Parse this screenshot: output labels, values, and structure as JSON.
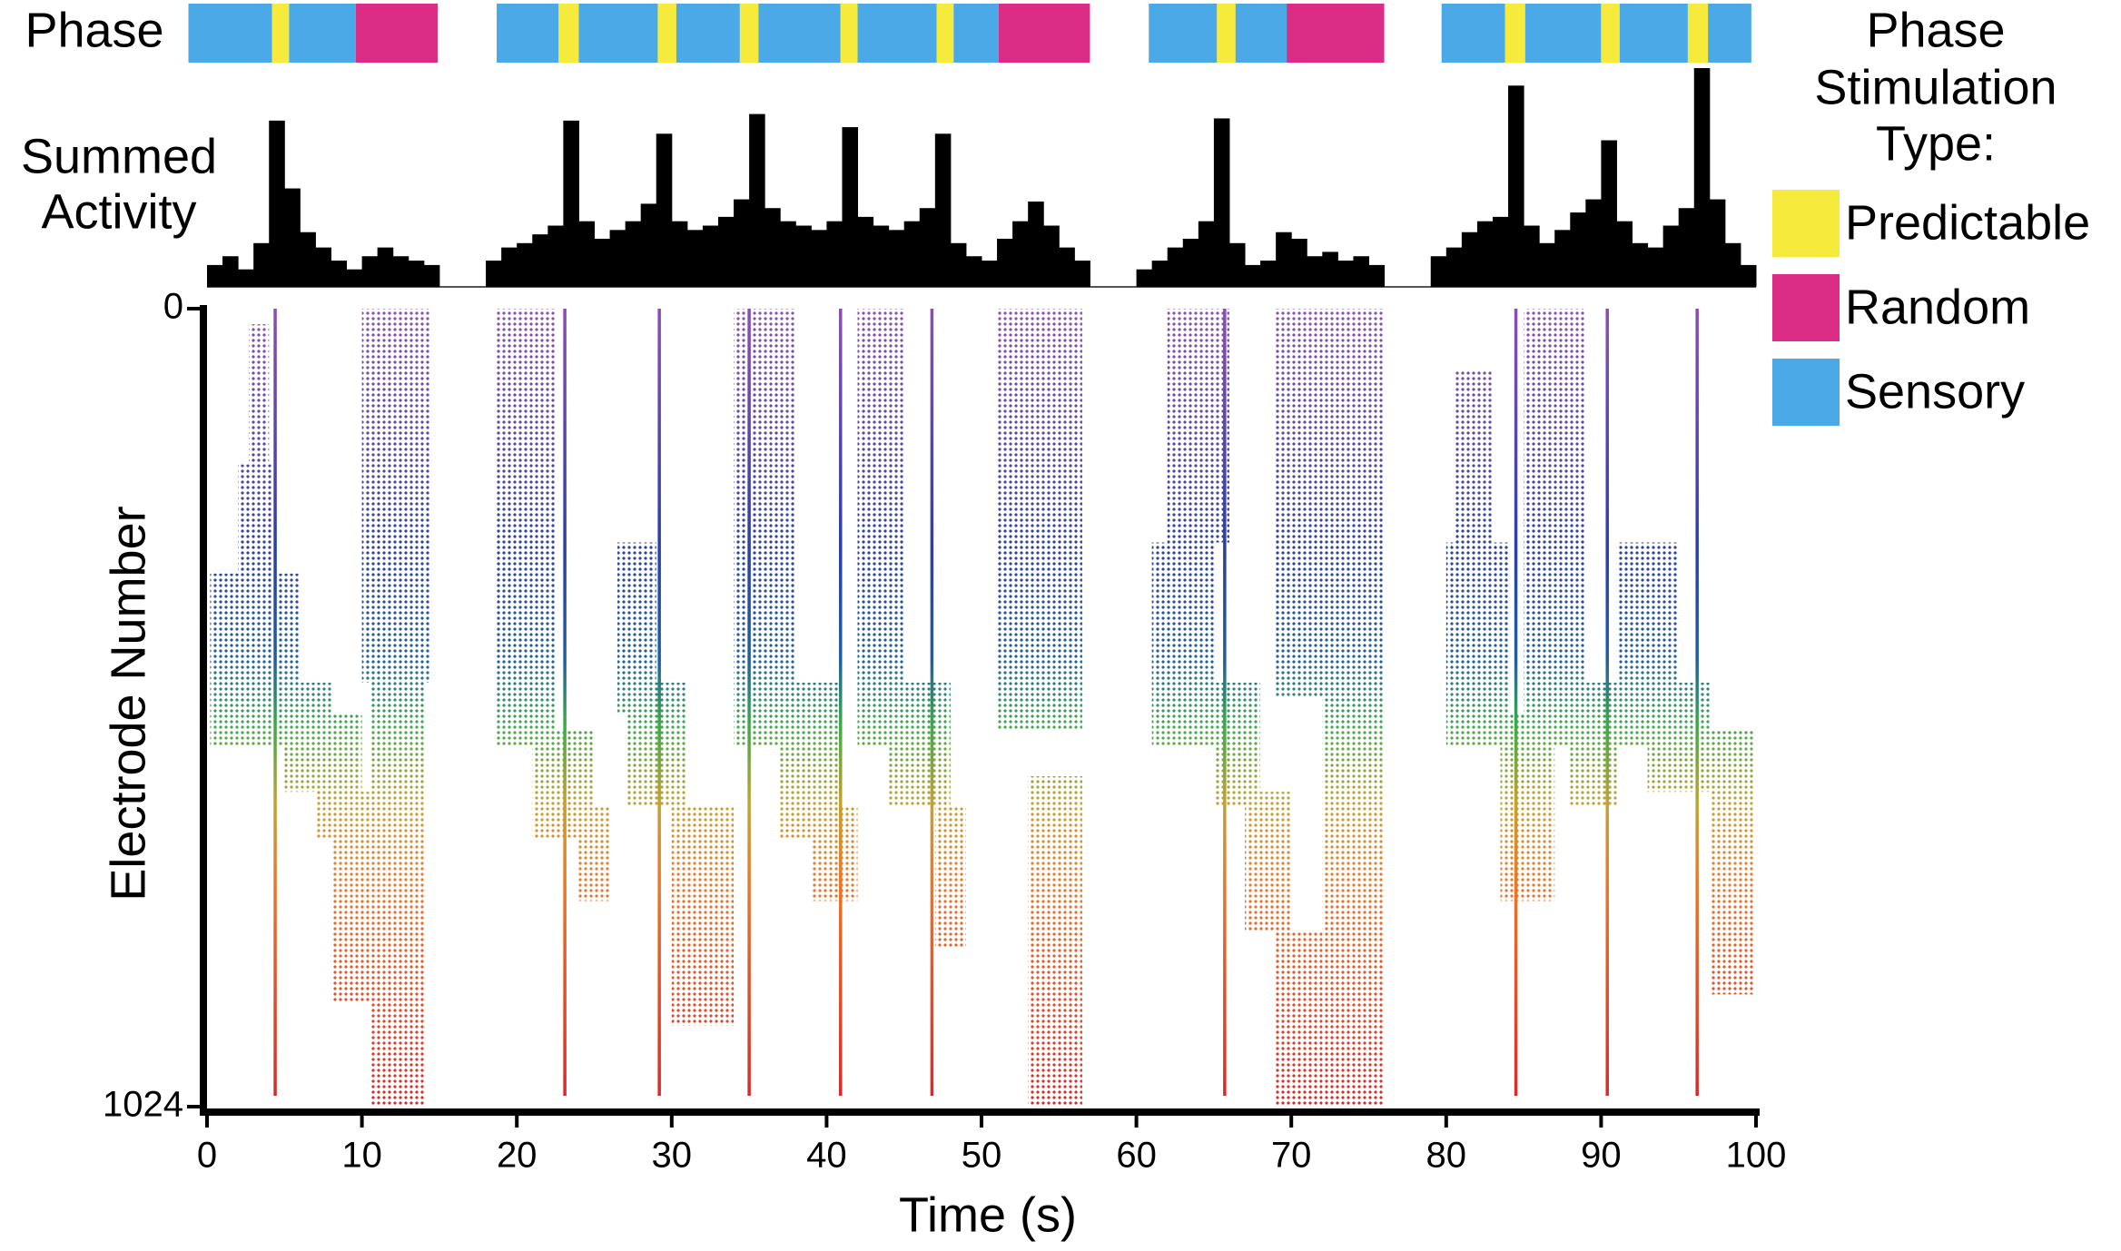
{
  "chart_data": {
    "type": "raster",
    "phase_label": "Phase",
    "activity_label": [
      "Summed",
      "Activity"
    ],
    "ylabel": "Electrode Number",
    "xlabel": "Time (s)",
    "xlim": [
      0,
      100
    ],
    "xticks": [
      0,
      10,
      20,
      30,
      40,
      50,
      60,
      70,
      80,
      90,
      100
    ],
    "ylim": [
      0,
      1024
    ],
    "yticks": [
      0,
      1024
    ],
    "y_inverted": true,
    "legend_title": [
      "Phase",
      "Stimulation",
      "Type:"
    ],
    "legend": [
      {
        "name": "Predictable",
        "color": "#f6eb3c"
      },
      {
        "name": "Random",
        "color": "#dc2d86"
      },
      {
        "name": "Sensory",
        "color": "#4aa9e6"
      }
    ],
    "phases": [
      {
        "start": -1.2,
        "end": 4.2,
        "type": 2
      },
      {
        "start": 4.2,
        "end": 5.3,
        "type": 0
      },
      {
        "start": 5.3,
        "end": 9.6,
        "type": 2
      },
      {
        "start": 9.6,
        "end": 14.9,
        "type": 1
      },
      {
        "start": 18.7,
        "end": 22.7,
        "type": 2
      },
      {
        "start": 22.7,
        "end": 24.0,
        "type": 0
      },
      {
        "start": 24.0,
        "end": 29.1,
        "type": 2
      },
      {
        "start": 29.1,
        "end": 30.3,
        "type": 0
      },
      {
        "start": 30.3,
        "end": 34.4,
        "type": 2
      },
      {
        "start": 34.4,
        "end": 35.6,
        "type": 0
      },
      {
        "start": 35.6,
        "end": 40.9,
        "type": 2
      },
      {
        "start": 40.9,
        "end": 42.0,
        "type": 0
      },
      {
        "start": 42.0,
        "end": 47.1,
        "type": 2
      },
      {
        "start": 47.1,
        "end": 48.2,
        "type": 0
      },
      {
        "start": 48.2,
        "end": 51.1,
        "type": 2
      },
      {
        "start": 51.1,
        "end": 57.0,
        "type": 1
      },
      {
        "start": 60.8,
        "end": 65.2,
        "type": 2
      },
      {
        "start": 65.2,
        "end": 66.4,
        "type": 0
      },
      {
        "start": 66.4,
        "end": 69.7,
        "type": 2
      },
      {
        "start": 69.7,
        "end": 76.0,
        "type": 1
      },
      {
        "start": 79.7,
        "end": 83.8,
        "type": 2
      },
      {
        "start": 83.8,
        "end": 85.1,
        "type": 0
      },
      {
        "start": 85.1,
        "end": 90.0,
        "type": 2
      },
      {
        "start": 90.0,
        "end": 91.2,
        "type": 0
      },
      {
        "start": 91.2,
        "end": 95.6,
        "type": 2
      },
      {
        "start": 95.6,
        "end": 96.9,
        "type": 0
      },
      {
        "start": 96.9,
        "end": 99.7,
        "type": 2
      }
    ],
    "activity": {
      "start": 0,
      "bin_width": 1,
      "ylim": [
        0,
        100
      ],
      "color": "#000000",
      "values": [
        10,
        14,
        8,
        20,
        76,
        45,
        25,
        18,
        12,
        8,
        14,
        18,
        14,
        12,
        10,
        0,
        0,
        0,
        12,
        18,
        20,
        24,
        28,
        76,
        30,
        22,
        26,
        30,
        38,
        70,
        30,
        26,
        28,
        32,
        40,
        79,
        36,
        30,
        28,
        26,
        30,
        73,
        32,
        28,
        26,
        30,
        36,
        70,
        20,
        14,
        12,
        22,
        30,
        39,
        28,
        18,
        12,
        0,
        0,
        0,
        8,
        12,
        18,
        22,
        30,
        77,
        20,
        10,
        12,
        25,
        22,
        14,
        16,
        12,
        14,
        10,
        0,
        0,
        0,
        14,
        18,
        25,
        30,
        32,
        92,
        28,
        20,
        26,
        34,
        40,
        67,
        30,
        20,
        18,
        28,
        36,
        100,
        40,
        20,
        10
      ]
    },
    "colormap": [
      {
        "at": 0,
        "color": "#8c4fb2"
      },
      {
        "at": 0.3,
        "color": "#2b3fa3"
      },
      {
        "at": 0.44,
        "color": "#1f5f9e"
      },
      {
        "at": 0.52,
        "color": "#3ca94a"
      },
      {
        "at": 0.62,
        "color": "#c4a232"
      },
      {
        "at": 0.72,
        "color": "#e8792a"
      },
      {
        "at": 1,
        "color": "#d8262a"
      }
    ],
    "stimuli": {
      "times": [
        4.4,
        23.1,
        29.2,
        35.0,
        40.9,
        46.8,
        65.7,
        84.5,
        90.4,
        96.2
      ],
      "electrodes": [
        0,
        1010
      ]
    },
    "bursts": [
      [
        0.2,
        6,
        340,
        560
      ],
      [
        2,
        4.3,
        200,
        480
      ],
      [
        2.7,
        4,
        20,
        200
      ],
      [
        5,
        8,
        480,
        620
      ],
      [
        7,
        10,
        520,
        680
      ],
      [
        8,
        11,
        620,
        890
      ],
      [
        10,
        14.5,
        0,
        480
      ],
      [
        10.5,
        14,
        480,
        1024
      ],
      [
        18.7,
        22.5,
        0,
        560
      ],
      [
        21,
        25,
        540,
        680
      ],
      [
        24,
        26,
        640,
        760
      ],
      [
        26.5,
        29,
        300,
        520
      ],
      [
        27,
        31,
        480,
        640
      ],
      [
        30,
        34,
        640,
        920
      ],
      [
        34,
        38,
        0,
        560
      ],
      [
        37,
        41,
        480,
        680
      ],
      [
        39,
        42,
        640,
        760
      ],
      [
        42,
        45,
        0,
        560
      ],
      [
        44,
        48,
        480,
        640
      ],
      [
        47,
        49,
        640,
        820
      ],
      [
        51,
        56.5,
        0,
        540
      ],
      [
        53,
        56.5,
        600,
        1024
      ],
      [
        61,
        65,
        300,
        560
      ],
      [
        62,
        66,
        0,
        300
      ],
      [
        65,
        68,
        480,
        640
      ],
      [
        67,
        70,
        620,
        800
      ],
      [
        69,
        72,
        800,
        1024
      ],
      [
        69,
        76,
        0,
        500
      ],
      [
        72,
        76,
        500,
        1024
      ],
      [
        80,
        84,
        300,
        560
      ],
      [
        80.5,
        83,
        80,
        300
      ],
      [
        83.5,
        87,
        520,
        760
      ],
      [
        85,
        89,
        0,
        560
      ],
      [
        88,
        91,
        480,
        640
      ],
      [
        91,
        95,
        300,
        560
      ],
      [
        93,
        97,
        480,
        620
      ],
      [
        97,
        99.8,
        540,
        880
      ]
    ]
  }
}
